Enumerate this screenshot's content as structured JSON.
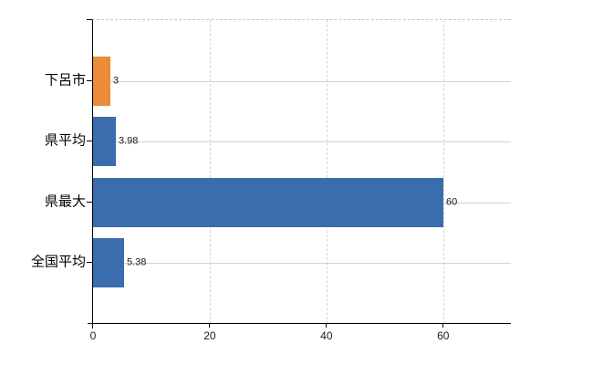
{
  "chart_data": {
    "type": "bar",
    "orientation": "horizontal",
    "title": "",
    "xlabel": "",
    "ylabel": "",
    "categories": [
      "下呂市",
      "県平均",
      "県最大",
      "全国平均"
    ],
    "values": [
      3,
      3.98,
      60,
      5.38
    ],
    "value_labels": [
      "3",
      "3.98",
      "60",
      "5.38"
    ],
    "bar_colors": [
      "#EB8C36",
      "#3B6CAE",
      "#3B6CAE",
      "#3B6CAE"
    ],
    "x_ticks": [
      0,
      20,
      40,
      60
    ],
    "x_tick_labels": [
      "0",
      "20",
      "40",
      "60"
    ],
    "xlim": [
      0,
      71.6
    ],
    "grid": true,
    "legend_position": "none",
    "highlight_color": "#EB8C36",
    "base_color": "#3B6CAE"
  },
  "style": {
    "background": "#FFFFFF",
    "axis_color": "#000000",
    "h_gridline_color": "#CDD5CD",
    "v_gridline_color": "#D6D6D6",
    "top_border_color": "#C6C6C6",
    "text_color": "#000000"
  }
}
